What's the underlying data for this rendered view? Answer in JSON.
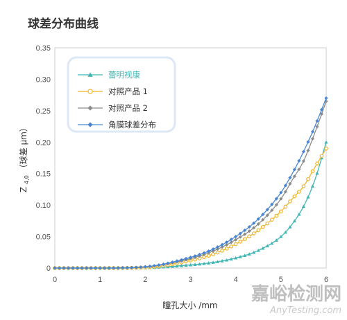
{
  "chart_data": {
    "type": "line",
    "title": "球差分布曲线",
    "xlabel": "瞳孔大小 /mm",
    "ylabel": "Z4,0（球差 μm）",
    "ylabel_parts": {
      "z": "Z",
      "sub": "4,0",
      "rest": "（球差 μm）"
    },
    "xlim": [
      0,
      6
    ],
    "ylim": [
      0,
      0.35
    ],
    "x_ticks": [
      "0",
      "1",
      "2",
      "3",
      "4",
      "5",
      "6"
    ],
    "y_ticks": [
      "0",
      "0.05",
      "0.10",
      "0.15",
      "0.20",
      "0.25",
      "0.30",
      "0.35"
    ],
    "grid": false,
    "legend_position": "top-left",
    "series": [
      {
        "name": "蕾明视康",
        "color": "#3fb6b4",
        "marker": "triangle",
        "x": [
          0,
          1,
          2,
          3,
          3.5,
          4,
          4.5,
          5,
          5.25,
          5.5,
          5.75,
          6
        ],
        "y": [
          0,
          0,
          0.0005,
          0.005,
          0.009,
          0.016,
          0.028,
          0.05,
          0.07,
          0.098,
          0.14,
          0.2
        ]
      },
      {
        "name": "对照产品 1",
        "color": "#f0b429",
        "marker": "circle",
        "x": [
          0,
          1,
          2,
          3,
          3.5,
          4,
          4.5,
          5,
          5.25,
          5.5,
          5.75,
          6
        ],
        "y": [
          0,
          0,
          0.001,
          0.012,
          0.022,
          0.038,
          0.06,
          0.09,
          0.11,
          0.13,
          0.16,
          0.19
        ]
      },
      {
        "name": "对照产品 2",
        "color": "#8c8c8c",
        "marker": "diamond",
        "x": [
          0,
          1,
          2,
          3,
          3.5,
          4,
          4.5,
          5,
          5.25,
          5.5,
          5.75,
          6
        ],
        "y": [
          0,
          0,
          0.002,
          0.015,
          0.027,
          0.045,
          0.07,
          0.11,
          0.14,
          0.17,
          0.215,
          0.265
        ]
      },
      {
        "name": "角膜球差分布",
        "color": "#4a86d0",
        "marker": "diamond",
        "x": [
          0,
          1,
          2,
          3,
          3.5,
          4,
          4.5,
          5,
          5.25,
          5.5,
          5.75,
          6
        ],
        "y": [
          0,
          0,
          0.002,
          0.017,
          0.03,
          0.05,
          0.078,
          0.12,
          0.15,
          0.185,
          0.225,
          0.27
        ]
      }
    ]
  },
  "watermark": {
    "main": "嘉峪检测网",
    "sub": "AnyTesting.com"
  }
}
